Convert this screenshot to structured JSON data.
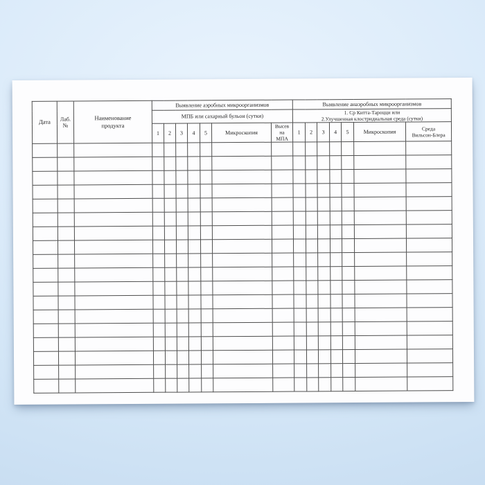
{
  "colors": {
    "background_center": "#eaf4fd",
    "background_edge": "#c5dbf0",
    "paper": "#fdfdfe",
    "grid_line": "#4d4d4d",
    "text": "#262626"
  },
  "table": {
    "static_columns": [
      {
        "label": "Дата"
      },
      {
        "label": "Лаб.\n№"
      },
      {
        "label": "Наименование\nпродукта"
      }
    ],
    "sections": [
      {
        "title": "Выявление аэробных микроорганизмов",
        "subtitle": "МПБ или сахарный бульон (сутки)",
        "day_columns": [
          "1",
          "2",
          "3",
          "4",
          "5"
        ],
        "extra_columns": [
          "Микроскопия",
          "Высев на\nМПА"
        ]
      },
      {
        "title": "Выявление анаэробных микроорганизмов",
        "subtitle": "1. Ср Китта-Тароцци или\n2.Улучшенная клостридиальная среда (сутки)",
        "day_columns": [
          "1",
          "2",
          "3",
          "4",
          "5"
        ],
        "extra_columns": [
          "Микроскопия",
          "Среда\nВильсон-Блера"
        ]
      }
    ],
    "body_rows": 18
  }
}
